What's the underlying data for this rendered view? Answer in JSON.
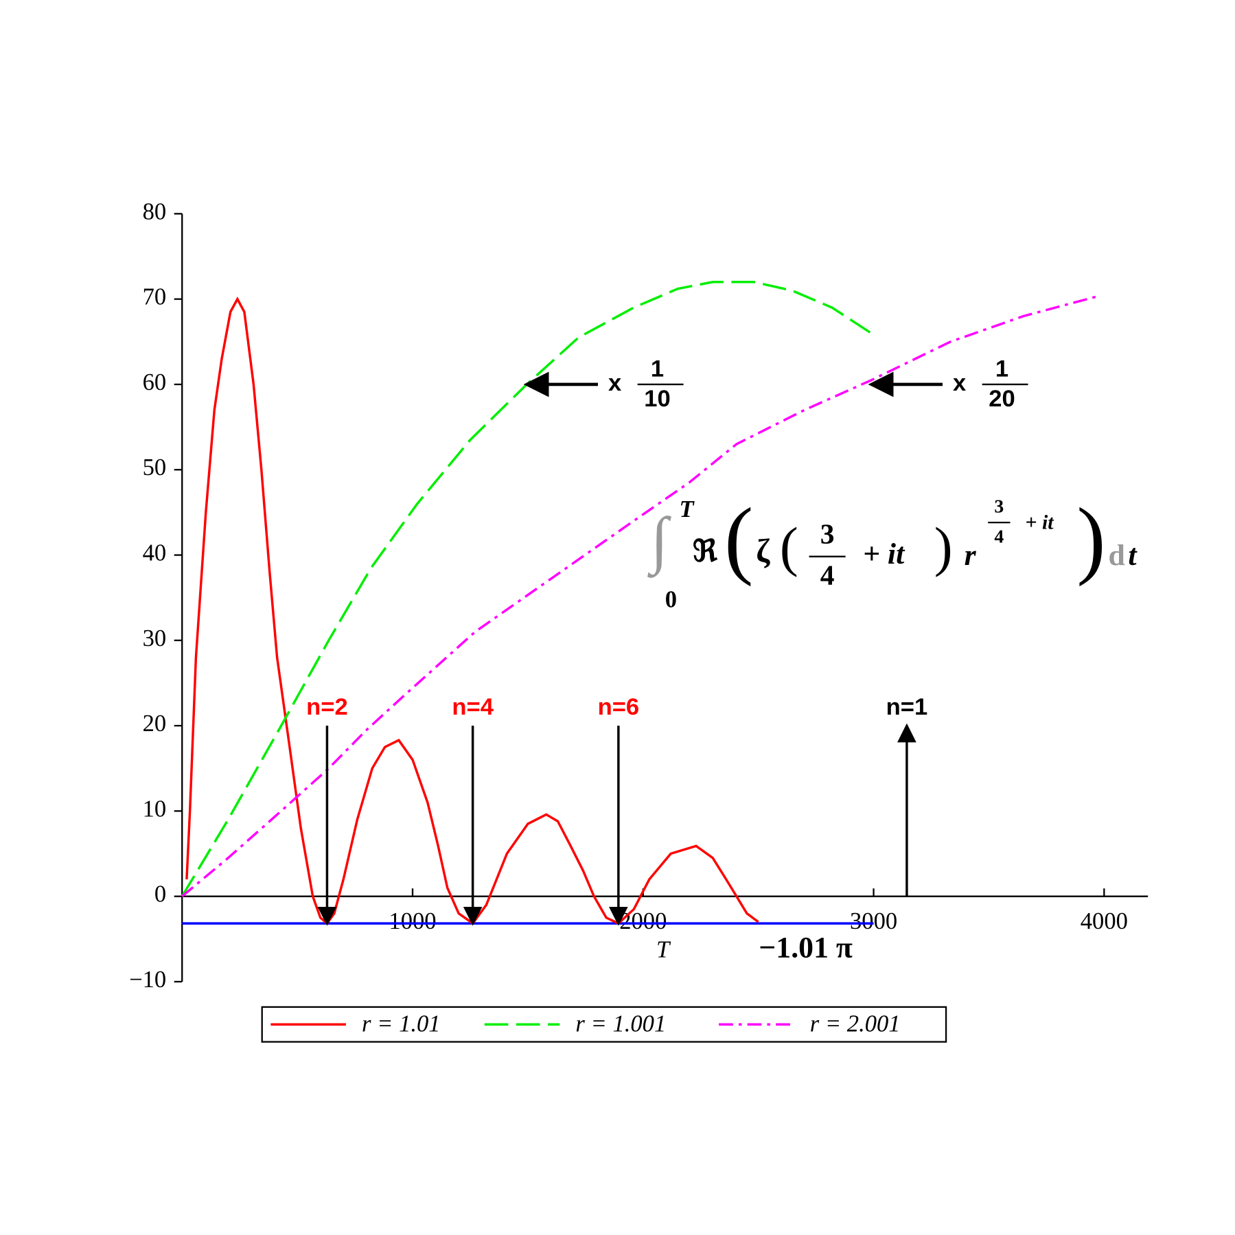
{
  "chart_data": {
    "type": "line",
    "xlabel": "T",
    "xlim": [
      0,
      4190
    ],
    "ylim": [
      -10,
      80
    ],
    "xticks": [
      1000,
      2000,
      3000,
      4000
    ],
    "yticks": [
      {
        "value": -10,
        "label": "−10"
      },
      0,
      10,
      20,
      30,
      40,
      50,
      60,
      70,
      80
    ],
    "series": [
      {
        "name": "r = 1.01",
        "color": "#ff0000",
        "dash": "solid",
        "x": [
          20,
          34,
          60,
          103,
          140,
          172,
          210,
          240,
          270,
          310,
          344,
          380,
          412,
          464,
          515,
          567,
          600,
          629,
          660,
          700,
          760,
          825,
          880,
          940,
          1000,
          1065,
          1110,
          1151,
          1200,
          1261,
          1320,
          1409,
          1500,
          1580,
          1630,
          1684,
          1740,
          1787,
          1840,
          1893,
          1960,
          2027,
          2120,
          2230,
          2302,
          2360,
          2405,
          2450,
          2500
        ],
        "values": [
          2,
          10,
          28,
          45,
          57,
          63,
          68.5,
          70,
          68.5,
          60,
          50,
          38,
          28,
          18,
          8,
          0,
          -2.5,
          -3.17,
          -2,
          2,
          9,
          15,
          17.5,
          18.3,
          16,
          11,
          6,
          1,
          -2,
          -3.17,
          -1,
          5,
          8.5,
          9.6,
          8.8,
          6,
          3,
          0,
          -2.5,
          -3.17,
          -1.5,
          2,
          5,
          5.9,
          4.5,
          2,
          0,
          -2,
          -3
        ]
      },
      {
        "name": "r = 1.001",
        "color": "#00ee00",
        "dash": "dashed",
        "x": [
          0,
          200,
          430,
          636,
          820,
          1020,
          1250,
          1495,
          1720,
          1959,
          2150,
          2302,
          2480,
          2646,
          2820,
          2990
        ],
        "values": [
          0,
          9,
          20,
          30,
          38.5,
          46,
          53.5,
          60,
          65.5,
          69,
          71.2,
          72,
          72,
          71,
          69,
          66
        ]
      },
      {
        "name": "r = 2.001",
        "color": "#ff00ff",
        "dash": "dashdot",
        "x": [
          0,
          200,
          430,
          636,
          800,
          962,
          1271,
          1615,
          1959,
          2200,
          2405,
          2700,
          2990,
          3333,
          3650,
          3969
        ],
        "values": [
          0,
          4.5,
          10,
          15,
          19.5,
          23.5,
          31,
          37.5,
          44,
          48.5,
          53,
          57,
          60.5,
          65,
          68,
          70.3
        ]
      }
    ],
    "reference_line": {
      "value": -3.173,
      "x": [
        0,
        3000
      ],
      "color": "#0000ff",
      "label": "−1.01 π"
    },
    "markers": [
      {
        "text": "n=2",
        "x": 629,
        "color": "#ff0000",
        "direction": "down"
      },
      {
        "text": "n=4",
        "x": 1261,
        "color": "#ff0000",
        "direction": "down"
      },
      {
        "text": "n=6",
        "x": 1893,
        "color": "#ff0000",
        "direction": "down"
      },
      {
        "text": "n=1",
        "x": 3144,
        "color": "#000000",
        "direction": "up"
      }
    ],
    "scale_notes": [
      {
        "x": 1495,
        "y": 60,
        "text": "x",
        "num": "1",
        "den": "10"
      },
      {
        "x": 2990,
        "y": 60,
        "text": "x",
        "num": "1",
        "den": "20"
      }
    ],
    "formula": {
      "upper": "T",
      "lower": "0",
      "re": "ℜ",
      "zeta": "ζ",
      "num": "3",
      "den": "4",
      "plus": "+ it",
      "r": "r",
      "exp_num": "3",
      "exp_den": "4",
      "exp_plus": "+ it",
      "d": "d",
      "t": "t"
    },
    "legend": "bottom"
  }
}
